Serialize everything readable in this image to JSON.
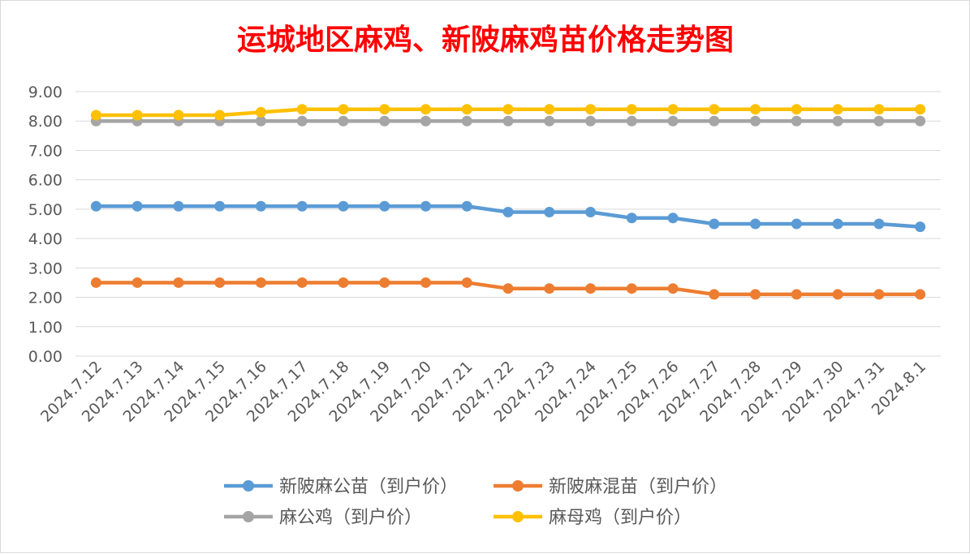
{
  "chart_data": {
    "type": "line",
    "title": "运城地区麻鸡、新陂麻鸡苗价格走势图",
    "title_color": "#ff0000",
    "categories": [
      "2024.7.12",
      "2024.7.13",
      "2024.7.14",
      "2024.7.15",
      "2024.7.16",
      "2024.7.17",
      "2024.7.18",
      "2024.7.19",
      "2024.7.20",
      "2024.7.21",
      "2024.7.22",
      "2024.7.23",
      "2024.7.24",
      "2024.7.25",
      "2024.7.26",
      "2024.7.27",
      "2024.7.28",
      "2024.7.29",
      "2024.7.30",
      "2024.7.31",
      "2024.8.1"
    ],
    "ylim": [
      0,
      9
    ],
    "yticks": [
      "0.00",
      "1.00",
      "2.00",
      "3.00",
      "4.00",
      "5.00",
      "6.00",
      "7.00",
      "8.00",
      "9.00"
    ],
    "grid": true,
    "legend_position": "bottom",
    "series": [
      {
        "name": "新陂麻公苗（到户价）",
        "color": "#5b9bd5",
        "values": [
          5.1,
          5.1,
          5.1,
          5.1,
          5.1,
          5.1,
          5.1,
          5.1,
          5.1,
          5.1,
          4.9,
          4.9,
          4.9,
          4.7,
          4.7,
          4.5,
          4.5,
          4.5,
          4.5,
          4.5,
          4.4
        ]
      },
      {
        "name": "新陂麻混苗（到户价）",
        "color": "#ed7d31",
        "values": [
          2.5,
          2.5,
          2.5,
          2.5,
          2.5,
          2.5,
          2.5,
          2.5,
          2.5,
          2.5,
          2.3,
          2.3,
          2.3,
          2.3,
          2.3,
          2.1,
          2.1,
          2.1,
          2.1,
          2.1,
          2.1
        ]
      },
      {
        "name": "麻公鸡（到户价）",
        "color": "#a5a5a5",
        "values": [
          8,
          8,
          8,
          8,
          8,
          8,
          8,
          8,
          8,
          8,
          8,
          8,
          8,
          8,
          8,
          8,
          8,
          8,
          8,
          8,
          8
        ]
      },
      {
        "name": "麻母鸡（到户价）",
        "color": "#ffc000",
        "values": [
          8.2,
          8.2,
          8.2,
          8.2,
          8.3,
          8.4,
          8.4,
          8.4,
          8.4,
          8.4,
          8.4,
          8.4,
          8.4,
          8.4,
          8.4,
          8.4,
          8.4,
          8.4,
          8.4,
          8.4,
          8.4
        ]
      }
    ]
  }
}
